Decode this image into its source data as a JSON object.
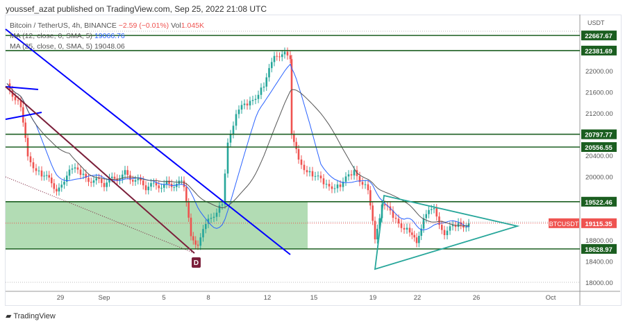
{
  "publisher_line": "youssef_azat published on TradingView.com, Sep 25, 2022 21:08 UTC",
  "legend": {
    "symbol": "Bitcoin / TetherUS, 4h, BINANCE",
    "change": "−2.59 (−0.01%)",
    "vol_label": "Vol",
    "vol_value": "1.045K",
    "ma1_label": "MA (12, close, 0, SMA, 5)",
    "ma1_value": "19066.76",
    "ma2_label": "MA (25, close, 0, SMA, 5)",
    "ma2_value": "19048.06"
  },
  "footer": {
    "brand": "TradingView"
  },
  "colors": {
    "up": "#26a69a",
    "down": "#ef5350",
    "level": "#1b5e20",
    "ma1": "#2962ff",
    "ma2": "#555555",
    "trend": "#0000ff",
    "maroon": "#7b1f3a",
    "zone": "#a5d6a7",
    "triangle": "#26a69a"
  },
  "chart_data": {
    "type": "candlestick",
    "currency": "USDT",
    "symbol_tag": "BTCUSDT",
    "last_price": "19115.35",
    "ylim": [
      17900,
      22900
    ],
    "y_ticks": [
      "22000.00",
      "21600.00",
      "21200.00",
      "20400.00",
      "20000.00",
      "18800.00",
      "18400.00",
      "18000.00"
    ],
    "x_ticks": [
      "29",
      "Sep",
      "5",
      "8",
      "12",
      "15",
      "19",
      "22",
      "26",
      "Oct"
    ],
    "levels": [
      "22667.67",
      "22381.69",
      "20797.77",
      "20556.55",
      "19522.46",
      "18628.97"
    ],
    "annotation": "D",
    "closes": [
      21700,
      21370,
      20320,
      20060,
      19730,
      20190,
      19990,
      19860,
      20060,
      19800,
      19860,
      19860,
      18810,
      18750,
      19140,
      19530,
      20580,
      21240,
      21370,
      21760,
      22220,
      22420,
      22160,
      20850,
      20260,
      20060,
      19800,
      19860,
      20060,
      19800,
      18750,
      19530,
      19140,
      19000,
      18680,
      19270,
      19340,
      18950,
      19070,
      19115
    ]
  }
}
